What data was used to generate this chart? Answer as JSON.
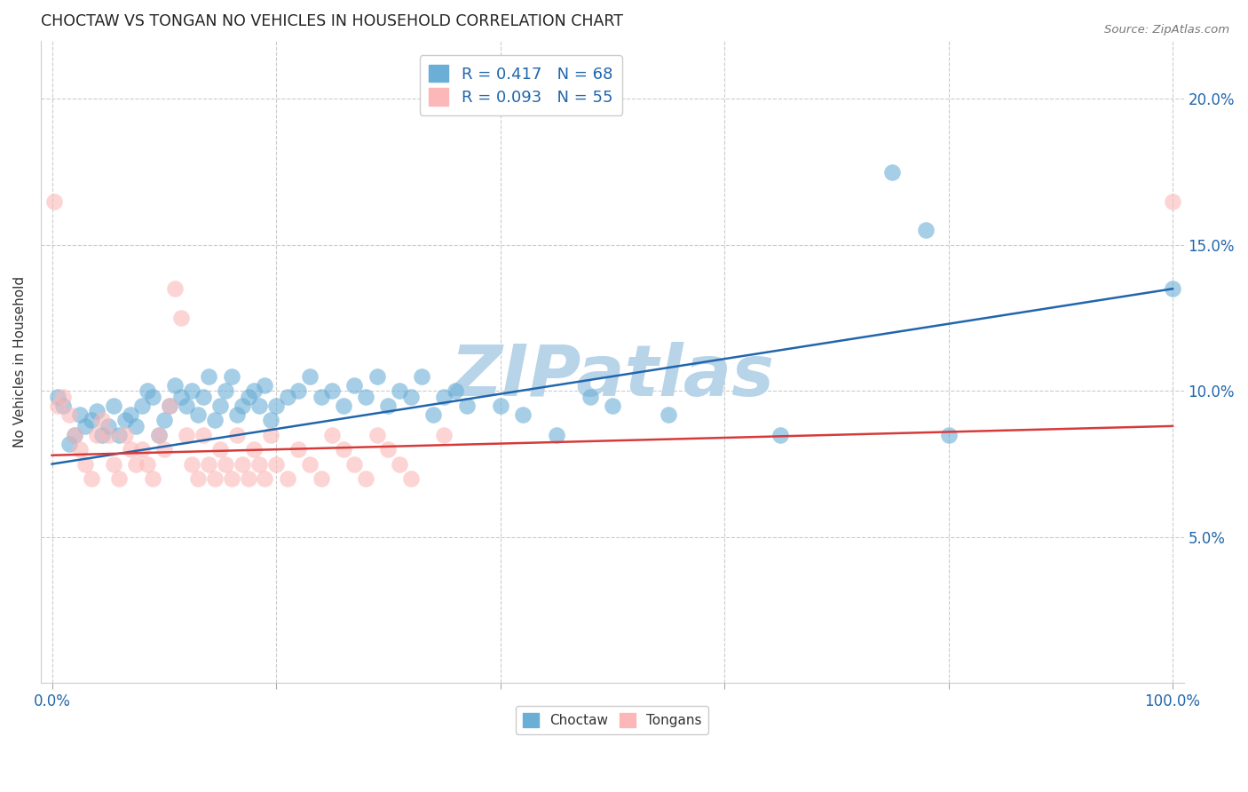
{
  "title": "CHOCTAW VS TONGAN NO VEHICLES IN HOUSEHOLD CORRELATION CHART",
  "source": "Source: ZipAtlas.com",
  "ylabel_label": "No Vehicles in Household",
  "legend_labels": [
    "Choctaw",
    "Tongans"
  ],
  "choctaw_color": "#6baed6",
  "tongan_color": "#fcb8b8",
  "trendline_choctaw_color": "#2166ac",
  "trendline_tongan_color": "#d63b3b",
  "R_choctaw": 0.417,
  "N_choctaw": 68,
  "R_tongan": 0.093,
  "N_tongan": 55,
  "watermark": "ZIPatlas",
  "watermark_color": "#b8d4e8",
  "choctaw_points": [
    [
      0.5,
      9.8
    ],
    [
      1.0,
      9.5
    ],
    [
      1.5,
      8.2
    ],
    [
      2.0,
      8.5
    ],
    [
      2.5,
      9.2
    ],
    [
      3.0,
      8.8
    ],
    [
      3.5,
      9.0
    ],
    [
      4.0,
      9.3
    ],
    [
      4.5,
      8.5
    ],
    [
      5.0,
      8.8
    ],
    [
      5.5,
      9.5
    ],
    [
      6.0,
      8.5
    ],
    [
      6.5,
      9.0
    ],
    [
      7.0,
      9.2
    ],
    [
      7.5,
      8.8
    ],
    [
      8.0,
      9.5
    ],
    [
      8.5,
      10.0
    ],
    [
      9.0,
      9.8
    ],
    [
      9.5,
      8.5
    ],
    [
      10.0,
      9.0
    ],
    [
      10.5,
      9.5
    ],
    [
      11.0,
      10.2
    ],
    [
      11.5,
      9.8
    ],
    [
      12.0,
      9.5
    ],
    [
      12.5,
      10.0
    ],
    [
      13.0,
      9.2
    ],
    [
      13.5,
      9.8
    ],
    [
      14.0,
      10.5
    ],
    [
      14.5,
      9.0
    ],
    [
      15.0,
      9.5
    ],
    [
      15.5,
      10.0
    ],
    [
      16.0,
      10.5
    ],
    [
      16.5,
      9.2
    ],
    [
      17.0,
      9.5
    ],
    [
      17.5,
      9.8
    ],
    [
      18.0,
      10.0
    ],
    [
      18.5,
      9.5
    ],
    [
      19.0,
      10.2
    ],
    [
      19.5,
      9.0
    ],
    [
      20.0,
      9.5
    ],
    [
      21.0,
      9.8
    ],
    [
      22.0,
      10.0
    ],
    [
      23.0,
      10.5
    ],
    [
      24.0,
      9.8
    ],
    [
      25.0,
      10.0
    ],
    [
      26.0,
      9.5
    ],
    [
      27.0,
      10.2
    ],
    [
      28.0,
      9.8
    ],
    [
      29.0,
      10.5
    ],
    [
      30.0,
      9.5
    ],
    [
      31.0,
      10.0
    ],
    [
      32.0,
      9.8
    ],
    [
      33.0,
      10.5
    ],
    [
      34.0,
      9.2
    ],
    [
      35.0,
      9.8
    ],
    [
      36.0,
      10.0
    ],
    [
      37.0,
      9.5
    ],
    [
      40.0,
      9.5
    ],
    [
      42.0,
      9.2
    ],
    [
      45.0,
      8.5
    ],
    [
      48.0,
      9.8
    ],
    [
      50.0,
      9.5
    ],
    [
      55.0,
      9.2
    ],
    [
      65.0,
      8.5
    ],
    [
      75.0,
      17.5
    ],
    [
      78.0,
      15.5
    ],
    [
      80.0,
      8.5
    ],
    [
      100.0,
      13.5
    ]
  ],
  "tongan_points": [
    [
      0.2,
      16.5
    ],
    [
      0.5,
      9.5
    ],
    [
      1.0,
      9.8
    ],
    [
      1.5,
      9.2
    ],
    [
      2.0,
      8.5
    ],
    [
      2.5,
      8.0
    ],
    [
      3.0,
      7.5
    ],
    [
      3.5,
      7.0
    ],
    [
      4.0,
      8.5
    ],
    [
      4.5,
      9.0
    ],
    [
      5.0,
      8.5
    ],
    [
      5.5,
      7.5
    ],
    [
      6.0,
      7.0
    ],
    [
      6.5,
      8.5
    ],
    [
      7.0,
      8.0
    ],
    [
      7.5,
      7.5
    ],
    [
      8.0,
      8.0
    ],
    [
      8.5,
      7.5
    ],
    [
      9.0,
      7.0
    ],
    [
      9.5,
      8.5
    ],
    [
      10.0,
      8.0
    ],
    [
      10.5,
      9.5
    ],
    [
      11.0,
      13.5
    ],
    [
      11.5,
      12.5
    ],
    [
      12.0,
      8.5
    ],
    [
      12.5,
      7.5
    ],
    [
      13.0,
      7.0
    ],
    [
      13.5,
      8.5
    ],
    [
      14.0,
      7.5
    ],
    [
      14.5,
      7.0
    ],
    [
      15.0,
      8.0
    ],
    [
      15.5,
      7.5
    ],
    [
      16.0,
      7.0
    ],
    [
      16.5,
      8.5
    ],
    [
      17.0,
      7.5
    ],
    [
      17.5,
      7.0
    ],
    [
      18.0,
      8.0
    ],
    [
      18.5,
      7.5
    ],
    [
      19.0,
      7.0
    ],
    [
      19.5,
      8.5
    ],
    [
      20.0,
      7.5
    ],
    [
      21.0,
      7.0
    ],
    [
      22.0,
      8.0
    ],
    [
      23.0,
      7.5
    ],
    [
      24.0,
      7.0
    ],
    [
      25.0,
      8.5
    ],
    [
      26.0,
      8.0
    ],
    [
      27.0,
      7.5
    ],
    [
      28.0,
      7.0
    ],
    [
      29.0,
      8.5
    ],
    [
      30.0,
      8.0
    ],
    [
      31.0,
      7.5
    ],
    [
      32.0,
      7.0
    ],
    [
      35.0,
      8.5
    ],
    [
      100.0,
      16.5
    ]
  ],
  "choctaw_trend_x": [
    0.0,
    100.0
  ],
  "choctaw_trend_y": [
    7.5,
    13.5
  ],
  "tongan_trend_x": [
    0.0,
    100.0
  ],
  "tongan_trend_y": [
    7.8,
    8.8
  ],
  "xlim": [
    -1,
    101
  ],
  "ylim": [
    0,
    22
  ],
  "x_ticks_labeled": [
    0,
    100
  ],
  "y_ticks_right": [
    5,
    10,
    15,
    20
  ],
  "y_ticks_minor": [
    5,
    10,
    15,
    20
  ],
  "figsize": [
    14.06,
    8.92
  ],
  "dpi": 100
}
